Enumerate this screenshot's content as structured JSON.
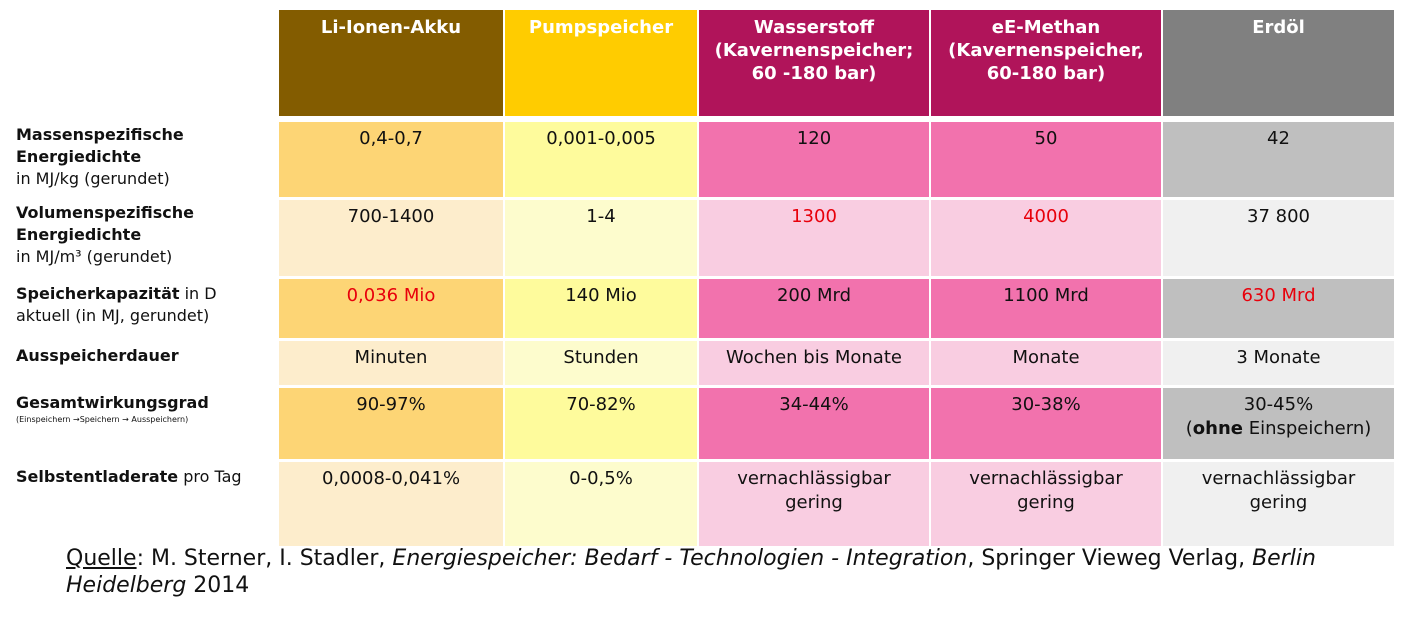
{
  "headers": [
    {
      "label": "Li-Ionen-Akku",
      "color": "#835c00"
    },
    {
      "label": "Pumpspeicher",
      "color": "#ffcc00"
    },
    {
      "label": "Wasserstoff\n(Kavernenspeicher;\n60 -180 bar)",
      "color": "#b0145a"
    },
    {
      "label": "eE-Methan\n(Kavernenspeicher,\n60-180 bar)",
      "color": "#b0145a"
    },
    {
      "label": "Erdöl",
      "color": "#808080"
    }
  ],
  "column_colors": {
    "dark": [
      "#fdd575",
      "#fefb9c",
      "#f272ad",
      "#f272ad",
      "#bfbfbf"
    ],
    "light": [
      "#fdedcc",
      "#fdfccd",
      "#f9cde1",
      "#f9cde1",
      "#f0f0f0"
    ]
  },
  "rows": [
    {
      "label_bold": "Massenspezifische\nEnergiedichte",
      "label_rest": "in MJ/kg (gerundet)",
      "label_small": "",
      "cells": [
        "0,4-0,7",
        "0,001-0,005",
        "120",
        "50",
        "42"
      ],
      "red": [
        false,
        false,
        false,
        false,
        false
      ]
    },
    {
      "label_bold": "Volumenspezifische\nEnergiedichte",
      "label_rest": "in MJ/m³ (gerundet)",
      "label_small": "",
      "cells": [
        "700-1400",
        "1-4",
        "1300",
        "4000",
        "37 800"
      ],
      "red": [
        false,
        false,
        true,
        true,
        false
      ]
    },
    {
      "label_bold": "Speicherkapazität",
      "label_rest": " in D\naktuell (in MJ,  gerundet)",
      "label_small": "",
      "cells": [
        "0,036 Mio",
        "140 Mio",
        "200 Mrd",
        "1100 Mrd",
        "630 Mrd"
      ],
      "red": [
        true,
        false,
        false,
        false,
        true
      ]
    },
    {
      "label_bold": "Ausspeicherdauer",
      "label_rest": "",
      "label_small": "",
      "cells": [
        "Minuten",
        "Stunden",
        "Wochen bis Monate",
        "Monate",
        "3 Monate"
      ],
      "red": [
        false,
        false,
        false,
        false,
        false
      ]
    },
    {
      "label_bold": "Gesamtwirkungsgrad",
      "label_rest": "",
      "label_small": "(Einspeichern →Speichern → Ausspeichern)",
      "cells": [
        "90-97%",
        "70-82%",
        "34-44%",
        "30-38%",
        "30-45%"
      ],
      "extra_last": {
        "bold": "ohne",
        "rest": " Einspeichern)",
        "open": "("
      },
      "red": [
        false,
        false,
        false,
        false,
        false
      ]
    },
    {
      "label_bold": "Selbstentladerate",
      "label_rest": "  pro Tag",
      "label_small": "",
      "cells": [
        "0,0008-0,041%",
        "0-0,5%",
        "vernachlässigbar\ngering",
        "vernachlässigbar\ngering",
        "vernachlässigbar\ngering"
      ],
      "red": [
        false,
        false,
        false,
        false,
        false
      ]
    }
  ],
  "source": {
    "prefix": "Quelle",
    "authors": ": M. Sterner, I. Stadler, ",
    "title": "Energiespeicher: Bedarf - Technologien - Integration",
    "publisher": ", Springer Vieweg Verlag, ",
    "place": "Berlin Heidelberg",
    "year": " 2014"
  }
}
